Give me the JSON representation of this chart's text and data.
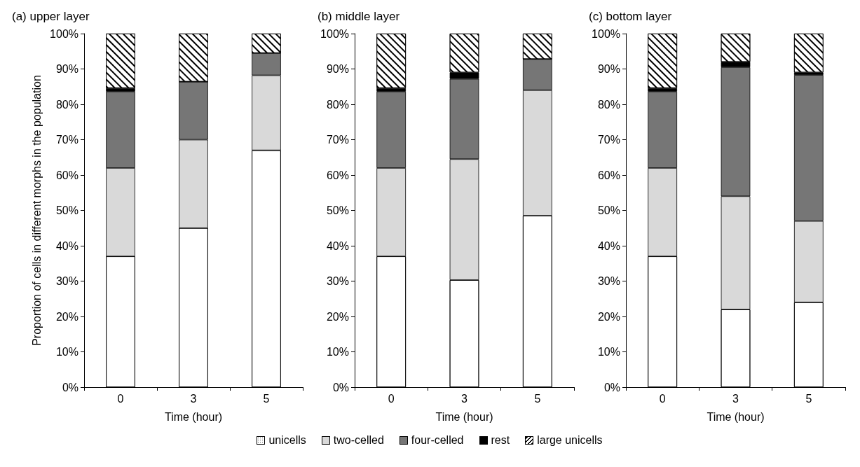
{
  "chart_data": [
    {
      "type": "bar",
      "title": "(a) upper layer",
      "xlabel": "Time (hour)",
      "ylabel": "Proportion of cells in different morphs in the population",
      "categories": [
        "0",
        "3",
        "5"
      ],
      "stacked": true,
      "ylim": [
        0,
        100
      ],
      "yticks": [
        {
          "value": 0,
          "label": "0%"
        },
        {
          "value": 10,
          "label": "10%"
        },
        {
          "value": 20,
          "label": "20%"
        },
        {
          "value": 30,
          "label": "30%"
        },
        {
          "value": 40,
          "label": "40%"
        },
        {
          "value": 50,
          "label": "50%"
        },
        {
          "value": 60,
          "label": "60%"
        },
        {
          "value": 70,
          "label": "70%"
        },
        {
          "value": 80,
          "label": "80%"
        },
        {
          "value": 90,
          "label": "90%"
        },
        {
          "value": 100,
          "label": "100%"
        }
      ],
      "grid": false,
      "legend": "bottom",
      "series": [
        {
          "name": "unicells",
          "color": "#ffffff",
          "values": [
            37,
            45,
            67
          ]
        },
        {
          "name": "two-celled",
          "color": "#d9d9d9",
          "values": [
            25,
            25,
            21.2
          ]
        },
        {
          "name": "four-celled",
          "color": "#767676",
          "values": [
            21.6,
            16.4,
            6.3
          ]
        },
        {
          "name": "rest",
          "color": "#000000",
          "values": [
            1,
            0,
            0
          ]
        },
        {
          "name": "large unicells",
          "color": "#ffffff",
          "values": [
            15.4,
            13.6,
            5.5
          ]
        }
      ]
    },
    {
      "type": "bar",
      "title": "(b) middle layer",
      "xlabel": "Time (hour)",
      "categories": [
        "0",
        "3",
        "5"
      ],
      "stacked": true,
      "ylim": [
        0,
        100
      ],
      "yticks": [
        {
          "value": 0,
          "label": "0%"
        },
        {
          "value": 10,
          "label": "10%"
        },
        {
          "value": 20,
          "label": "20%"
        },
        {
          "value": 30,
          "label": "30%"
        },
        {
          "value": 40,
          "label": "40%"
        },
        {
          "value": 50,
          "label": "50%"
        },
        {
          "value": 60,
          "label": "60%"
        },
        {
          "value": 70,
          "label": "70%"
        },
        {
          "value": 80,
          "label": "80%"
        },
        {
          "value": 90,
          "label": "90%"
        },
        {
          "value": 100,
          "label": "100%"
        }
      ],
      "grid": false,
      "series": [
        {
          "color": "#ffffff",
          "values": [
            37,
            30.3,
            48.5
          ]
        },
        {
          "color": "#d9d9d9",
          "values": [
            25,
            34.2,
            35.5
          ]
        },
        {
          "color": "#767676",
          "values": [
            21.6,
            22.7,
            8.8
          ]
        },
        {
          "color": "#000000",
          "values": [
            1,
            1.8,
            0
          ]
        },
        {
          "color": "#ffffff",
          "values": [
            15.4,
            11,
            7.2
          ]
        }
      ]
    },
    {
      "type": "bar",
      "title": "(c) bottom layer",
      "xlabel": "Time (hour)",
      "categories": [
        "0",
        "3",
        "5"
      ],
      "stacked": true,
      "ylim": [
        0,
        100
      ],
      "yticks": [
        {
          "value": 0,
          "label": "0%"
        },
        {
          "value": 10,
          "label": "10%"
        },
        {
          "value": 20,
          "label": "20%"
        },
        {
          "value": 30,
          "label": "30%"
        },
        {
          "value": 40,
          "label": "40%"
        },
        {
          "value": 50,
          "label": "50%"
        },
        {
          "value": 60,
          "label": "60%"
        },
        {
          "value": 70,
          "label": "70%"
        },
        {
          "value": 80,
          "label": "80%"
        },
        {
          "value": 90,
          "label": "90%"
        },
        {
          "value": 100,
          "label": "100%"
        }
      ],
      "grid": false,
      "series": [
        {
          "color": "#ffffff",
          "values": [
            37,
            22,
            24
          ]
        },
        {
          "color": "#d9d9d9",
          "values": [
            25,
            32,
            23
          ]
        },
        {
          "color": "#767676",
          "values": [
            21.6,
            36.5,
            41.3
          ]
        },
        {
          "color": "#000000",
          "values": [
            1,
            1.5,
            0.7
          ]
        },
        {
          "color": "#ffffff",
          "values": [
            15.4,
            8,
            11
          ]
        }
      ]
    }
  ]
}
